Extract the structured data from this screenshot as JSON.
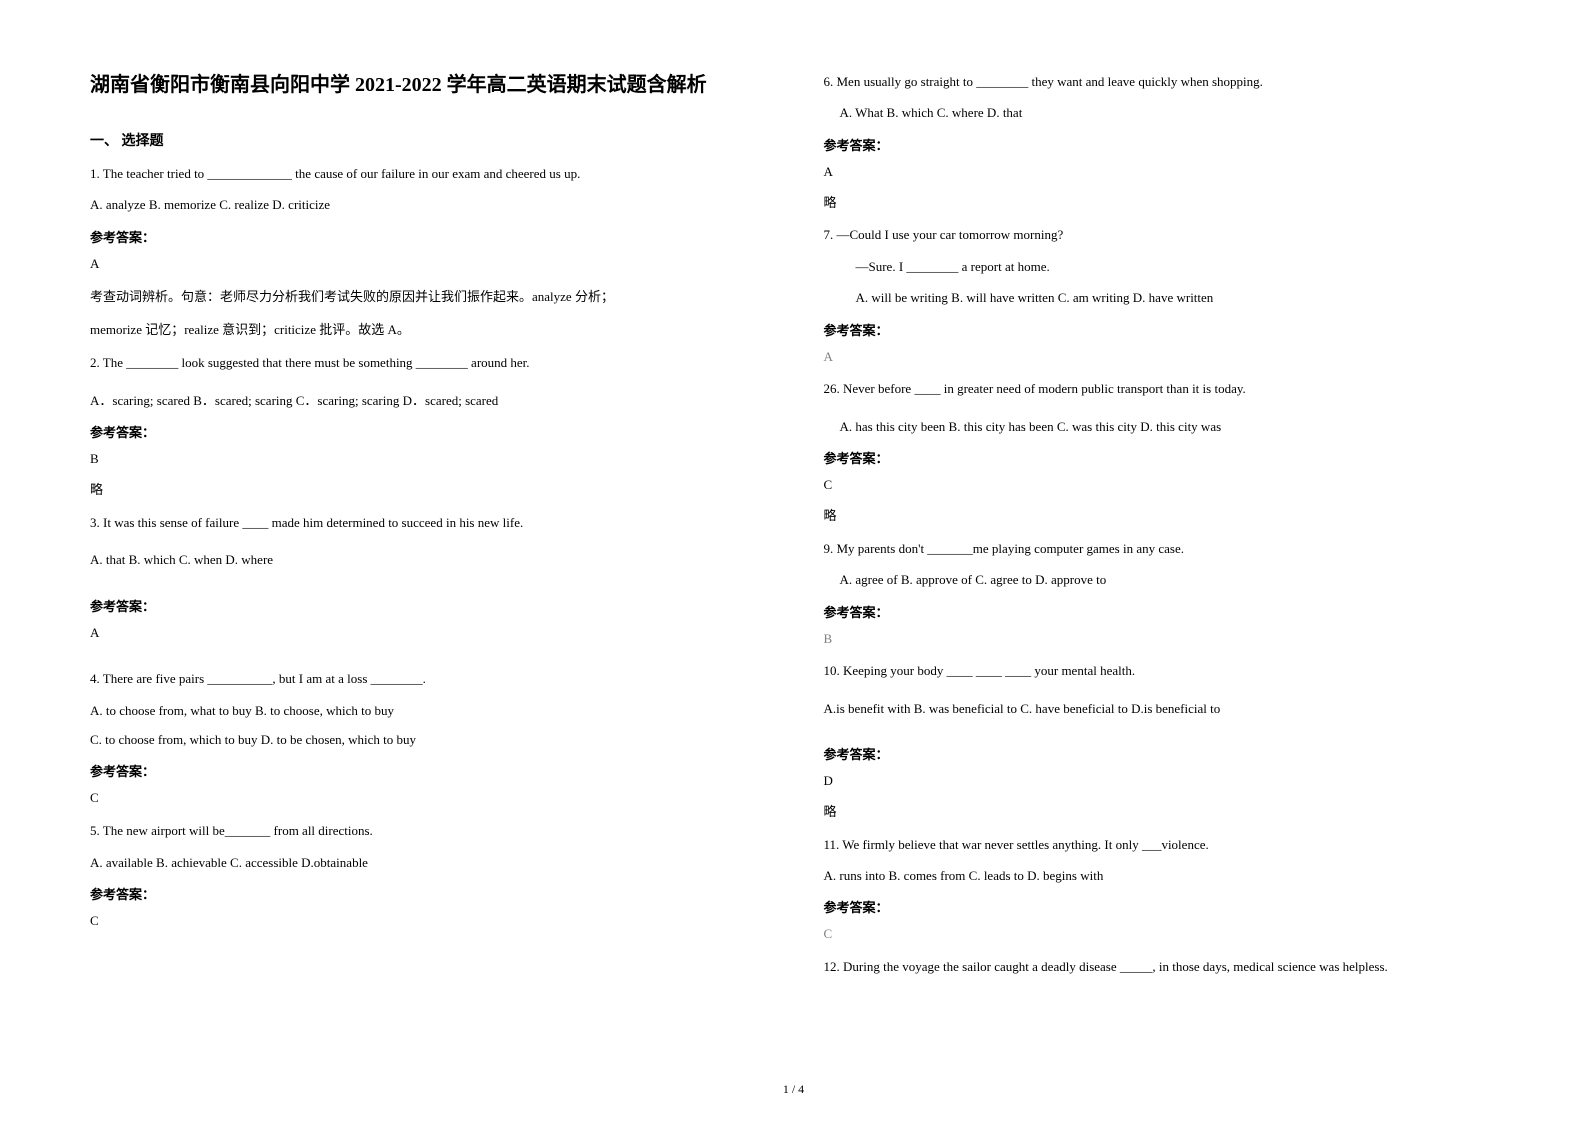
{
  "title": "湖南省衡阳市衡南县向阳中学 2021-2022 学年高二英语期末试题含解析",
  "section_header": "一、 选择题",
  "page_number": "1 / 4",
  "left_column": {
    "q1": {
      "stem": "1. The teacher tried to _____________ the cause of our failure in our exam and cheered us up.",
      "options": "A. analyze        B. memorize      C. realize       D. criticize",
      "answer_label": "参考答案：",
      "answer": "A",
      "explanation1": "考查动词辨析。句意：老师尽力分析我们考试失败的原因并让我们振作起来。analyze 分析；",
      "explanation2": "memorize 记忆；realize 意识到；criticize 批评。故选 A。"
    },
    "q2": {
      "stem": "2. The ________ look suggested that there must be something ________ around her.",
      "options": "A．scaring; scared  B．scared; scaring  C．scaring; scaring  D．scared; scared",
      "answer_label": "参考答案：",
      "answer": "B",
      "lue": "略"
    },
    "q3": {
      "stem": "3. It was this sense of failure ____ made him determined to succeed in his new life.",
      "options": "A. that      B. which     C. when        D. where",
      "answer_label": "参考答案：",
      "answer": "A"
    },
    "q4": {
      "stem": "4. There are five pairs __________, but I am at a loss ________.",
      "options1": "A. to choose from, what to buy    B. to choose, which to buy",
      "options2": "C. to choose from, which to buy  D. to be chosen, which to buy",
      "answer_label": "参考答案：",
      "answer": "C"
    },
    "q5": {
      "stem": "5. The new airport will be_______ from all directions.",
      "options": "A. available    B. achievable        C. accessible    D.obtainable",
      "answer_label": "参考答案：",
      "answer": "C"
    }
  },
  "right_column": {
    "q6": {
      "stem": "6.        Men usually go straight to ________ they want and leave quickly when shopping.",
      "options": "A. What         B. which        C. where        D. that",
      "answer_label": "参考答案：",
      "answer": "A",
      "lue": "略"
    },
    "q7": {
      "stem1": "7. —Could I use your car tomorrow morning?",
      "stem2": "—Sure. I ________ a report at home.",
      "options": "A. will be writing                        B. will have written                 C. am writing               D. have written",
      "answer_label": "参考答案：",
      "answer": "A"
    },
    "q8": {
      "stem": "26. Never before ____ in greater need of modern public transport than it is today.",
      "options": "A. has this city been   B. this city has been   C. was this city   D. this city was",
      "answer_label": "参考答案：",
      "answer": "C",
      "lue": "略"
    },
    "q9": {
      "stem": "9. My parents don't _______me playing computer games in any case.",
      "options": "A. agree of               B. approve of     C. agree to         D. approve to",
      "answer_label": "参考答案：",
      "answer": "B"
    },
    "q10": {
      "stem": "10. Keeping your body ____ ____ ____ your mental health.",
      "options": "A.is benefit with B. was beneficial to  C. have beneficial to D.is beneficial to",
      "answer_label": "参考答案：",
      "answer": "D",
      "lue": "略"
    },
    "q11": {
      "stem": "11. We firmly believe that war never settles anything. It only ___violence.",
      "options": " A. runs into   B. comes from   C. leads to   D. begins with",
      "answer_label": "参考答案：",
      "answer": "C"
    },
    "q12": {
      "stem": "12. During the voyage the sailor caught a deadly disease _____, in those days, medical science was helpless."
    }
  }
}
